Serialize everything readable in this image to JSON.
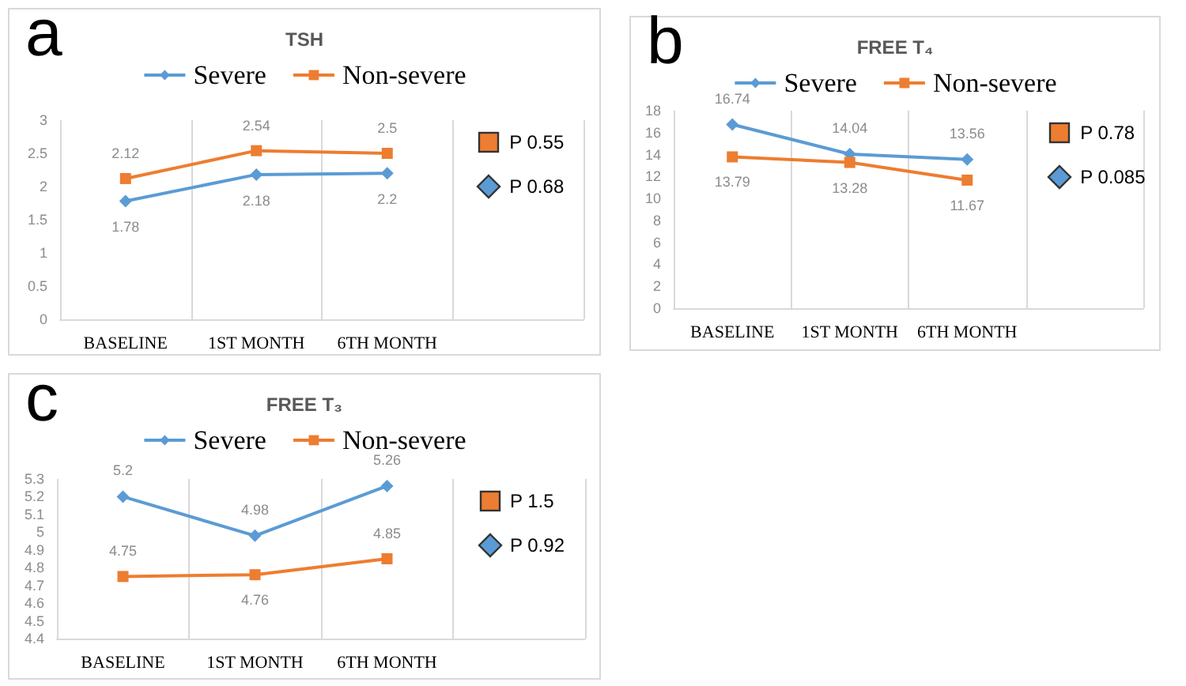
{
  "chart_data": [
    {
      "type": "line",
      "title": "TSH",
      "subtitle": "a",
      "categories": [
        "BASELINE",
        "1ST MONTH",
        "6TH MONTH",
        null
      ],
      "series": [
        {
          "name": "Severe",
          "color": "#5b9bd5",
          "marker": "diamond",
          "values": [
            1.78,
            2.18,
            2.2,
            null
          ]
        },
        {
          "name": "Non-severe",
          "color": "#ed7d31",
          "marker": "square",
          "values": [
            2.12,
            2.54,
            2.5,
            null
          ]
        }
      ],
      "ylim": [
        0,
        3
      ],
      "yticks": [
        0,
        0.5,
        1,
        1.5,
        2,
        2.5,
        3
      ],
      "grid": "x",
      "legend": "top",
      "data_labels": true,
      "annotations": [
        "P 0.55",
        "P 0.68"
      ]
    },
    {
      "type": "line",
      "title": "FREE T₄",
      "subtitle": "b",
      "categories": [
        "BASELINE",
        "1ST MONTH",
        "6TH MONTH",
        null
      ],
      "series": [
        {
          "name": "Severe",
          "color": "#5b9bd5",
          "marker": "diamond",
          "values": [
            16.74,
            14.04,
            13.56,
            null
          ]
        },
        {
          "name": "Non-severe",
          "color": "#ed7d31",
          "marker": "square",
          "values": [
            13.79,
            13.28,
            11.67,
            null
          ]
        }
      ],
      "ylim": [
        0,
        18
      ],
      "yticks": [
        0,
        2,
        4,
        6,
        8,
        10,
        12,
        14,
        16,
        18
      ],
      "grid": "x",
      "legend": "top",
      "data_labels": true,
      "annotations": [
        "P 0.78",
        "P 0.085"
      ]
    },
    {
      "type": "line",
      "title": "FREE T₃",
      "subtitle": "c",
      "categories": [
        "BASELINE",
        "1ST MONTH",
        "6TH MONTH",
        null
      ],
      "series": [
        {
          "name": "Severe",
          "color": "#5b9bd5",
          "marker": "diamond",
          "values": [
            5.2,
            4.98,
            5.26,
            null
          ]
        },
        {
          "name": "Non-severe",
          "color": "#ed7d31",
          "marker": "square",
          "values": [
            4.75,
            4.76,
            4.85,
            null
          ]
        }
      ],
      "ylim": [
        4.4,
        5.3
      ],
      "yticks": [
        4.4,
        4.5,
        4.6,
        4.7,
        4.8,
        4.9,
        5,
        5.1,
        5.2,
        5.3
      ],
      "grid": "x",
      "legend": "top",
      "data_labels": true,
      "annotations": [
        "P 1.5",
        "P 0.92"
      ]
    }
  ]
}
